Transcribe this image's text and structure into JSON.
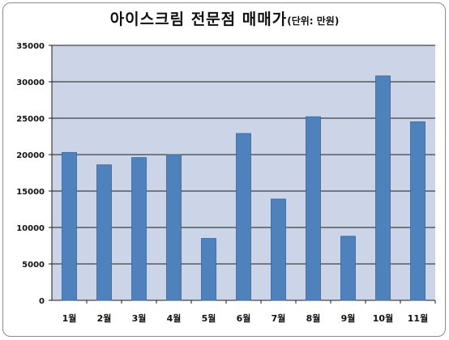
{
  "chart_data": {
    "type": "bar",
    "title": "아이스크림 전문점 매매가",
    "subtitle": "(단위: 만원)",
    "categories": [
      "1월",
      "2월",
      "3월",
      "4월",
      "5월",
      "6월",
      "7월",
      "8월",
      "9월",
      "10월",
      "11월"
    ],
    "values": [
      20300,
      18600,
      19600,
      20000,
      8500,
      22900,
      13900,
      25200,
      8800,
      30800,
      24500
    ],
    "ylim": [
      0,
      35000
    ],
    "yticks": [
      0,
      5000,
      10000,
      15000,
      20000,
      25000,
      30000,
      35000
    ],
    "grid": true,
    "legend": "none",
    "bar_color": "#4f81bd",
    "plot_background": "#ccd5e8"
  }
}
